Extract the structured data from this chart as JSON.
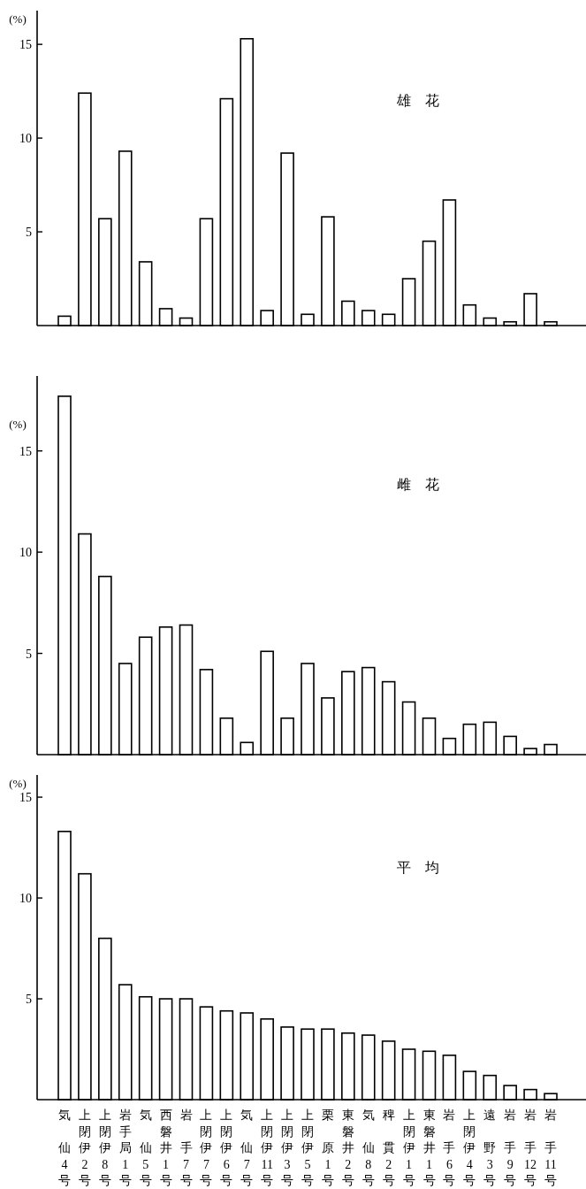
{
  "chart_data": [
    {
      "type": "bar",
      "ylabel": "(%)",
      "annotations": [
        "雄　花"
      ],
      "color": "#ffffff",
      "ylim": [
        0,
        16.8
      ],
      "yticks": [
        5,
        10,
        15
      ],
      "tick_labels": "y",
      "categories": [
        null,
        null,
        null,
        null,
        null,
        null,
        null,
        null,
        null,
        null,
        null,
        null,
        null,
        null,
        null,
        null,
        null,
        null,
        null,
        null,
        null,
        null,
        null,
        null,
        null
      ],
      "values": [
        0.5,
        12.4,
        5.7,
        9.3,
        3.4,
        0.9,
        0.4,
        5.7,
        12.1,
        15.3,
        0.8,
        9.2,
        0.6,
        5.8,
        1.3,
        0.8,
        0.6,
        2.5,
        4.5,
        6.7,
        1.1,
        0.4,
        0.2,
        1.7,
        0.2
      ]
    },
    {
      "type": "bar",
      "ylabel": "(%)",
      "annotations": [
        "雌　花"
      ],
      "color": "#ffffff",
      "ylim": [
        0,
        18.7
      ],
      "yticks": [
        5,
        10,
        15
      ],
      "tick_labels": "y",
      "categories": [
        null,
        null,
        null,
        null,
        null,
        null,
        null,
        null,
        null,
        null,
        null,
        null,
        null,
        null,
        null,
        null,
        null,
        null,
        null,
        null,
        null,
        null,
        null,
        null,
        null
      ],
      "values": [
        17.7,
        10.9,
        8.8,
        4.5,
        5.8,
        6.3,
        6.4,
        4.2,
        1.8,
        0.6,
        5.1,
        1.8,
        4.5,
        2.8,
        4.1,
        4.3,
        3.6,
        2.6,
        1.8,
        0.8,
        1.5,
        1.6,
        0.9,
        0.3,
        0.5
      ]
    },
    {
      "type": "bar",
      "ylabel": "(%)",
      "annotations": [
        "平　均"
      ],
      "color": "#ffffff",
      "ylim": [
        0,
        16.1
      ],
      "yticks": [
        5,
        10,
        15
      ],
      "categories": [
        "気仙4号",
        "上閉伊2号",
        "上閉伊8号",
        "岩手局1号",
        "気仙5号",
        "西磐井1号",
        "岩手7号",
        "上閉伊7号",
        "上閉伊6号",
        "気仙7号",
        "上閉伊11号",
        "上閉伊3号",
        "上閉伊5号",
        "栗原1号",
        "東磐井2号",
        "気仙8号",
        "稗貫2号",
        "上閉伊1号",
        "東磐井1号",
        "岩手6号",
        "上閉伊4号",
        "遠野3号",
        "岩手9号",
        "岩手12号",
        "岩手11号"
      ],
      "values": [
        13.3,
        11.2,
        8.0,
        5.7,
        5.1,
        5.0,
        5.0,
        4.6,
        4.4,
        4.3,
        4.0,
        3.6,
        3.5,
        3.5,
        3.3,
        3.2,
        2.9,
        2.5,
        2.4,
        2.2,
        1.4,
        1.2,
        0.7,
        0.5,
        0.3
      ]
    }
  ]
}
